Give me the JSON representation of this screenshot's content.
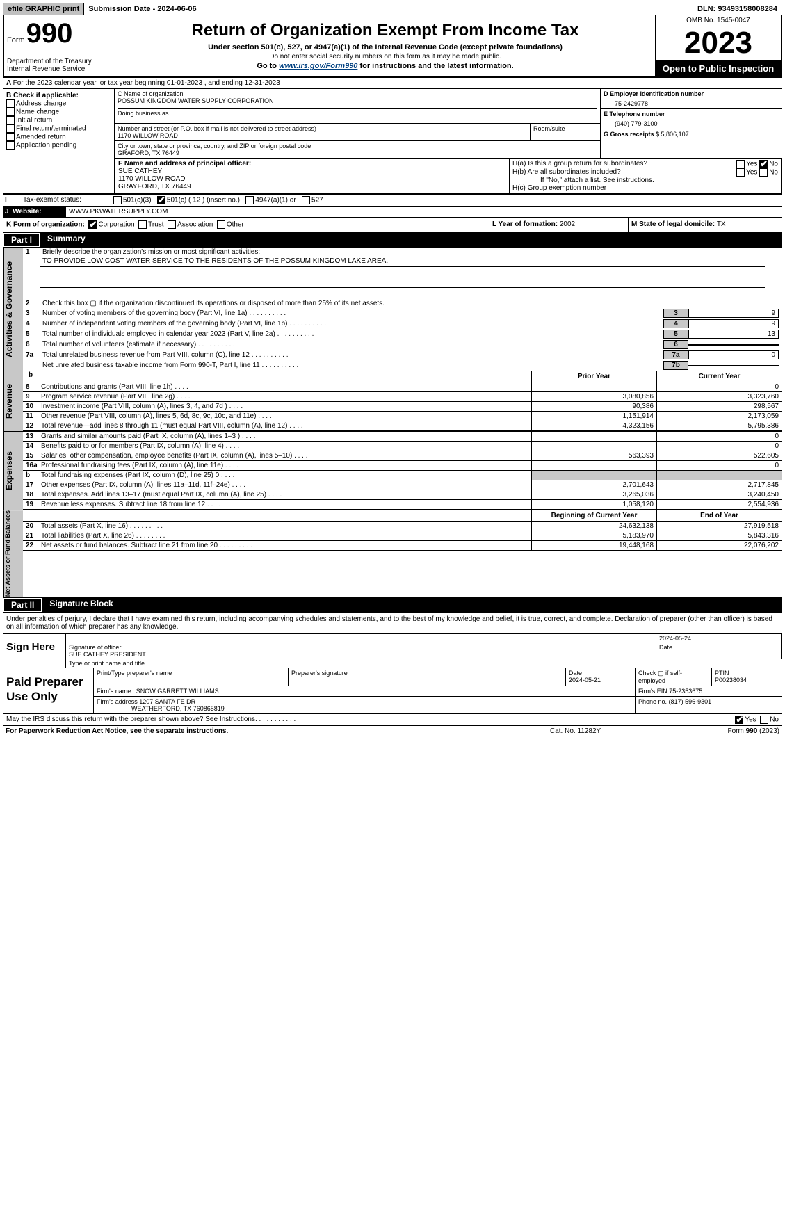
{
  "topbar": {
    "efile": "efile GRAPHIC print",
    "submission": "Submission Date - 2024-06-06",
    "dln": "DLN: 93493158008284"
  },
  "header": {
    "form_label": "Form",
    "form_number": "990",
    "dept": "Department of the Treasury Internal Revenue Service",
    "title": "Return of Organization Exempt From Income Tax",
    "sub1": "Under section 501(c), 527, or 4947(a)(1) of the Internal Revenue Code (except private foundations)",
    "sub2": "Do not enter social security numbers on this form as it may be made public.",
    "sub3_pre": "Go to ",
    "sub3_link": "www.irs.gov/Form990",
    "sub3_post": " for instructions and the latest information.",
    "omb": "OMB No. 1545-0047",
    "year": "2023",
    "inspection": "Open to Public Inspection"
  },
  "line_a": "For the 2023 calendar year, or tax year beginning 01-01-2023   , and ending 12-31-2023",
  "section_b": {
    "label": "B Check if applicable:",
    "items": [
      "Address change",
      "Name change",
      "Initial return",
      "Final return/terminated",
      "Amended return",
      "Application pending"
    ]
  },
  "section_c": {
    "name_lbl": "C Name of organization",
    "name": "POSSUM KINGDOM WATER SUPPLY CORPORATION",
    "dba_lbl": "Doing business as",
    "addr_lbl": "Number and street (or P.O. box if mail is not delivered to street address)",
    "addr": "1170 WILLOW ROAD",
    "room_lbl": "Room/suite",
    "city_lbl": "City or town, state or province, country, and ZIP or foreign postal code",
    "city": "GRAFORD, TX  76449"
  },
  "section_d": {
    "ein_lbl": "D Employer identification number",
    "ein": "75-2429778",
    "phone_lbl": "E Telephone number",
    "phone": "(940) 779-3100",
    "gross_lbl": "G Gross receipts $ ",
    "gross": "5,806,107"
  },
  "section_f": {
    "lbl": "F  Name and address of principal officer:",
    "name": "SUE CATHEY",
    "addr1": "1170 WILLOW ROAD",
    "addr2": "GRAYFORD, TX  76449"
  },
  "section_h": {
    "ha_lbl": "H(a)  Is this a group return for subordinates?",
    "hb_lbl": "H(b)  Are all subordinates included?",
    "hb_note": "If \"No,\" attach a list. See instructions.",
    "hc_lbl": "H(c)  Group exemption number"
  },
  "row_i": {
    "lbl": "I",
    "txt": "Tax-exempt status:",
    "opts": [
      "501(c)(3)",
      "501(c) ( 12 ) (insert no.)",
      "4947(a)(1) or",
      "527"
    ]
  },
  "row_j": {
    "lbl": "J",
    "txt": "Website:",
    "val": "WWW.PKWATERSUPPLY.COM"
  },
  "row_k": {
    "lbl": "K Form of organization:",
    "opts": [
      "Corporation",
      "Trust",
      "Association",
      "Other"
    ],
    "year_lbl": "L Year of formation: ",
    "year": "2002",
    "state_lbl": "M State of legal domicile: ",
    "state": "TX"
  },
  "part1": {
    "num": "Part I",
    "title": "Summary"
  },
  "gov_side": "Activities & Governance",
  "mission": {
    "lbl": "Briefly describe the organization's mission or most significant activities:",
    "txt": "TO PROVIDE LOW COST WATER SERVICE TO THE RESIDENTS OF THE POSSUM KINGDOM LAKE AREA."
  },
  "gov_rows": [
    {
      "n": "2",
      "t": "Check this box ▢ if the organization discontinued its operations or disposed of more than 25% of its net assets."
    },
    {
      "n": "3",
      "t": "Number of voting members of the governing body (Part VI, line 1a)",
      "box": "3",
      "v": "9"
    },
    {
      "n": "4",
      "t": "Number of independent voting members of the governing body (Part VI, line 1b)",
      "box": "4",
      "v": "9"
    },
    {
      "n": "5",
      "t": "Total number of individuals employed in calendar year 2023 (Part V, line 2a)",
      "box": "5",
      "v": "13"
    },
    {
      "n": "6",
      "t": "Total number of volunteers (estimate if necessary)",
      "box": "6",
      "v": ""
    },
    {
      "n": "7a",
      "t": "Total unrelated business revenue from Part VIII, column (C), line 12",
      "box": "7a",
      "v": "0"
    },
    {
      "n": "",
      "t": "Net unrelated business taxable income from Form 990-T, Part I, line 11",
      "box": "7b",
      "v": ""
    }
  ],
  "rev_side": "Revenue",
  "rev_hdr": {
    "b": "b",
    "py": "Prior Year",
    "cy": "Current Year"
  },
  "rev_rows": [
    {
      "n": "8",
      "t": "Contributions and grants (Part VIII, line 1h)",
      "py": "",
      "cy": "0"
    },
    {
      "n": "9",
      "t": "Program service revenue (Part VIII, line 2g)",
      "py": "3,080,856",
      "cy": "3,323,760"
    },
    {
      "n": "10",
      "t": "Investment income (Part VIII, column (A), lines 3, 4, and 7d )",
      "py": "90,386",
      "cy": "298,567"
    },
    {
      "n": "11",
      "t": "Other revenue (Part VIII, column (A), lines 5, 6d, 8c, 9c, 10c, and 11e)",
      "py": "1,151,914",
      "cy": "2,173,059"
    },
    {
      "n": "12",
      "t": "Total revenue—add lines 8 through 11 (must equal Part VIII, column (A), line 12)",
      "py": "4,323,156",
      "cy": "5,795,386"
    }
  ],
  "exp_side": "Expenses",
  "exp_rows": [
    {
      "n": "13",
      "t": "Grants and similar amounts paid (Part IX, column (A), lines 1–3 )",
      "py": "",
      "cy": "0"
    },
    {
      "n": "14",
      "t": "Benefits paid to or for members (Part IX, column (A), line 4)",
      "py": "",
      "cy": "0"
    },
    {
      "n": "15",
      "t": "Salaries, other compensation, employee benefits (Part IX, column (A), lines 5–10)",
      "py": "563,393",
      "cy": "522,605"
    },
    {
      "n": "16a",
      "t": "Professional fundraising fees (Part IX, column (A), line 11e)",
      "py": "",
      "cy": "0"
    },
    {
      "n": "b",
      "t": "Total fundraising expenses (Part IX, column (D), line 25) 0",
      "py": "SHADE",
      "cy": "SHADE"
    },
    {
      "n": "17",
      "t": "Other expenses (Part IX, column (A), lines 11a–11d, 11f–24e)",
      "py": "2,701,643",
      "cy": "2,717,845"
    },
    {
      "n": "18",
      "t": "Total expenses. Add lines 13–17 (must equal Part IX, column (A), line 25)",
      "py": "3,265,036",
      "cy": "3,240,450"
    },
    {
      "n": "19",
      "t": "Revenue less expenses. Subtract line 18 from line 12",
      "py": "1,058,120",
      "cy": "2,554,936"
    }
  ],
  "na_side": "Net Assets or Fund Balances",
  "na_hdr": {
    "py": "Beginning of Current Year",
    "cy": "End of Year"
  },
  "na_rows": [
    {
      "n": "20",
      "t": "Total assets (Part X, line 16)",
      "py": "24,632,138",
      "cy": "27,919,518"
    },
    {
      "n": "21",
      "t": "Total liabilities (Part X, line 26)",
      "py": "5,183,970",
      "cy": "5,843,316"
    },
    {
      "n": "22",
      "t": "Net assets or fund balances. Subtract line 21 from line 20",
      "py": "19,448,168",
      "cy": "22,076,202"
    }
  ],
  "part2": {
    "num": "Part II",
    "title": "Signature Block"
  },
  "sig_intro": "Under penalties of perjury, I declare that I have examined this return, including accompanying schedules and statements, and to the best of my knowledge and belief, it is true, correct, and complete. Declaration of preparer (other than officer) is based on all information of which preparer has any knowledge.",
  "sign": {
    "here": "Sign Here",
    "date": "2024-05-24",
    "sig_lbl": "Signature of officer",
    "name": "SUE CATHEY PRESIDENT",
    "name_lbl": "Type or print name and title",
    "date_lbl": "Date"
  },
  "prep": {
    "here": "Paid Preparer Use Only",
    "h1": "Print/Type preparer's name",
    "h2": "Preparer's signature",
    "h3": "Date",
    "h4": "Check ▢ if self-employed",
    "h5": "PTIN",
    "date": "2024-05-21",
    "ptin": "P00238034",
    "firm_lbl": "Firm's name",
    "firm": "SNOW GARRETT WILLIAMS",
    "ein_lbl": "Firm's EIN",
    "ein": "75-2353675",
    "addr_lbl": "Firm's address",
    "addr1": "1207 SANTA FE DR",
    "addr2": "WEATHERFORD, TX  760865819",
    "phone_lbl": "Phone no.",
    "phone": "(817) 596-9301"
  },
  "discuss": "May the IRS discuss this return with the preparer shown above? See Instructions.",
  "footer": {
    "l": "For Paperwork Reduction Act Notice, see the separate instructions.",
    "m": "Cat. No. 11282Y",
    "r_pre": "Form ",
    "r_num": "990",
    "r_post": " (2023)"
  },
  "yesno": {
    "yes": "Yes",
    "no": "No"
  }
}
